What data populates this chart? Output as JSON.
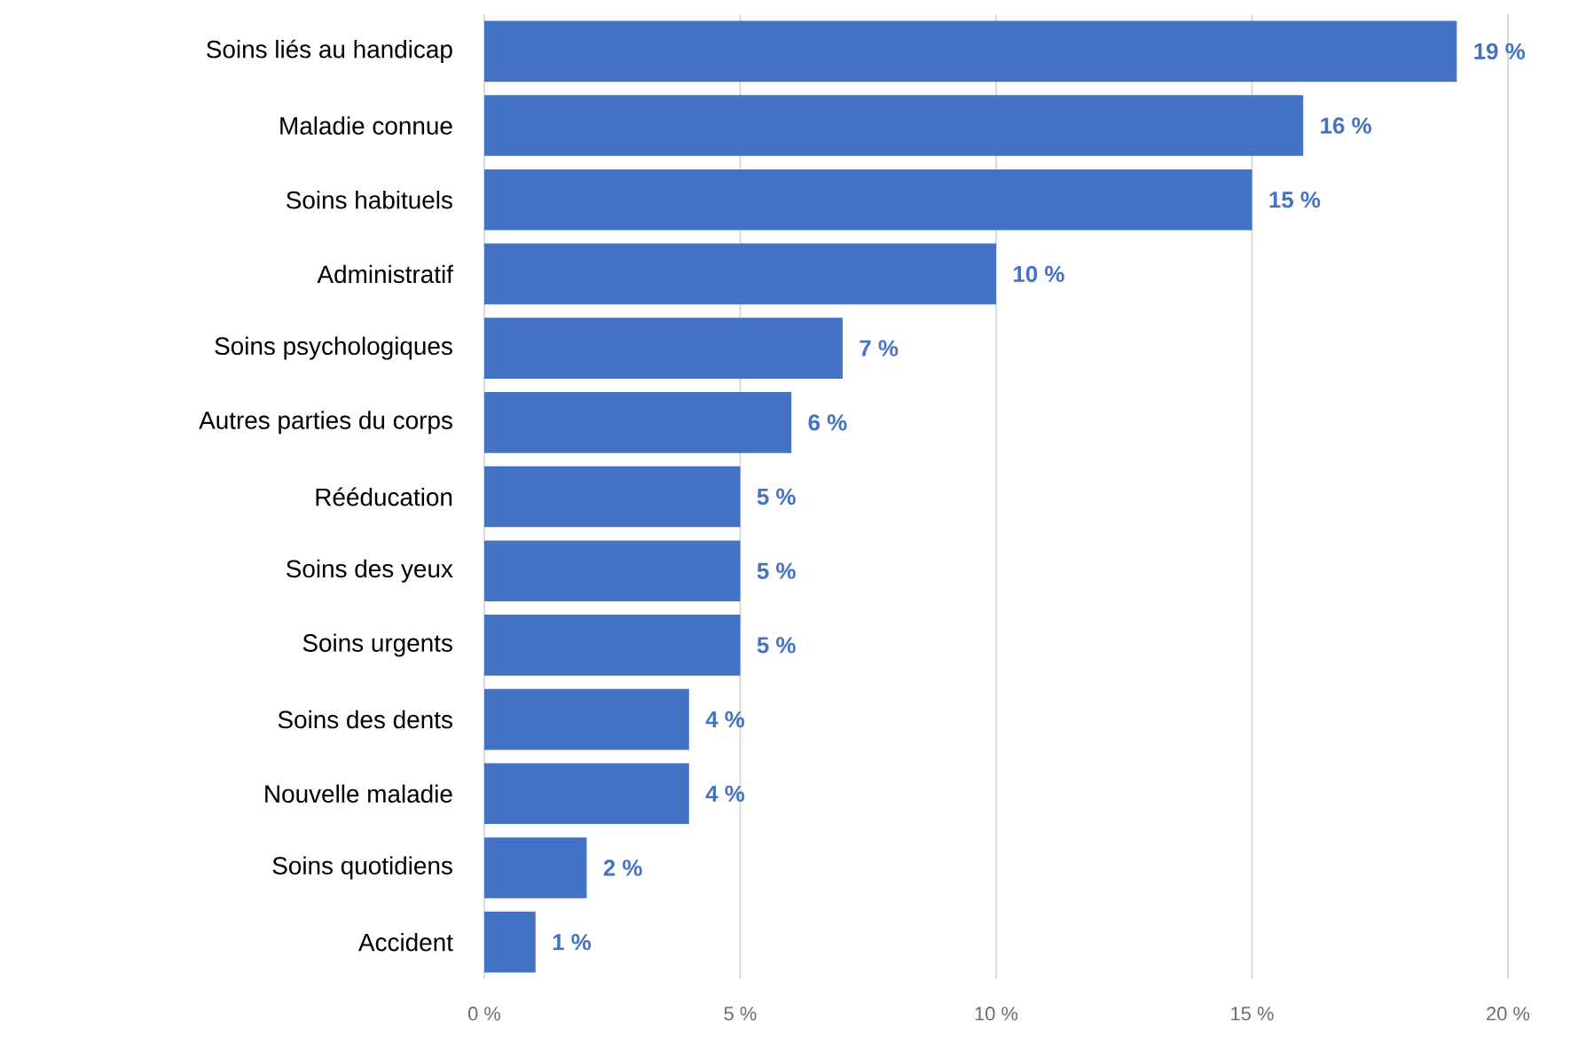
{
  "chart_data": {
    "type": "bar",
    "orientation": "horizontal",
    "categories": [
      "Soins liés au handicap",
      "Maladie connue",
      "Soins habituels",
      "Administratif",
      "Soins psychologiques",
      "Autres parties du corps",
      "Rééducation",
      "Soins des yeux",
      "Soins urgents",
      "Soins des dents",
      "Nouvelle maladie",
      "Soins quotidiens",
      "Accident"
    ],
    "values": [
      19,
      16,
      15,
      10,
      7,
      6,
      5,
      5,
      5,
      4,
      4,
      2,
      1
    ],
    "value_labels": [
      "19 %",
      "16 %",
      "15 %",
      "10 %",
      "7 %",
      "6 %",
      "5 %",
      "5 %",
      "5 %",
      "4 %",
      "4 %",
      "2 %",
      "1 %"
    ],
    "color": "#4472c4",
    "xlim": [
      0,
      20
    ],
    "xticks": [
      {
        "value": 0,
        "label": "0 %"
      },
      {
        "value": 5,
        "label": "5 %"
      },
      {
        "value": 10,
        "label": "10 %"
      },
      {
        "value": 15,
        "label": "15 %"
      },
      {
        "value": 20,
        "label": "20 %"
      }
    ],
    "grid": "x"
  }
}
